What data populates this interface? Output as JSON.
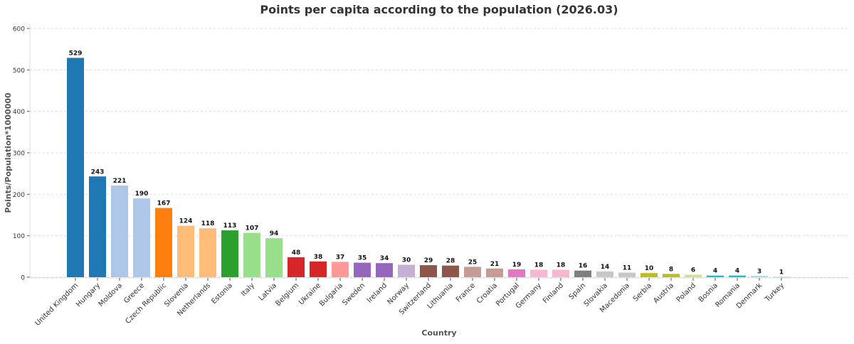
{
  "chart_data": {
    "type": "bar",
    "title": "Points per capita according to the population (2026.03)",
    "xlabel": "Country",
    "ylabel": "Points/Population*1000000",
    "ylim": [
      0,
      600
    ],
    "yticks": [
      0,
      100,
      200,
      300,
      400,
      500,
      600
    ],
    "grid": true,
    "categories": [
      "United Kingdom",
      "Hungary",
      "Moldova",
      "Greece",
      "Czech Republic",
      "Slovenia",
      "Netherlands",
      "Estonia",
      "Italy",
      "Latvia",
      "Belgium",
      "Ukraine",
      "Bulgaria",
      "Sweden",
      "Ireland",
      "Norway",
      "Switzerland",
      "Lithuania",
      "France",
      "Croatia",
      "Portugal",
      "Germany",
      "Finland",
      "Spain",
      "Slovakia",
      "Macedonia",
      "Serbia",
      "Austria",
      "Poland",
      "Bosnia",
      "Romania",
      "Denmark",
      "Turkey"
    ],
    "values": [
      529,
      243,
      221,
      190,
      167,
      124,
      118,
      113,
      107,
      94,
      48,
      38,
      37,
      35,
      34,
      30,
      29,
      28,
      25,
      21,
      19,
      18,
      18,
      16,
      14,
      11,
      10,
      8,
      6,
      4,
      4,
      3,
      1
    ],
    "colors": [
      "#1f77b4",
      "#1f77b4",
      "#aec7e8",
      "#aec7e8",
      "#ff7f0e",
      "#ffbb78",
      "#ffbb78",
      "#2ca02c",
      "#98df8a",
      "#98df8a",
      "#d62728",
      "#d62728",
      "#ff9896",
      "#9467bd",
      "#9467bd",
      "#c5b0d5",
      "#8c564b",
      "#8c564b",
      "#c49c94",
      "#c49c94",
      "#e377c2",
      "#f7b6d2",
      "#f7b6d2",
      "#7f7f7f",
      "#c7c7c7",
      "#c7c7c7",
      "#bcbd22",
      "#bcbd22",
      "#dbdb8d",
      "#17becf",
      "#17becf",
      "#9edae5",
      "#9edae5"
    ]
  }
}
